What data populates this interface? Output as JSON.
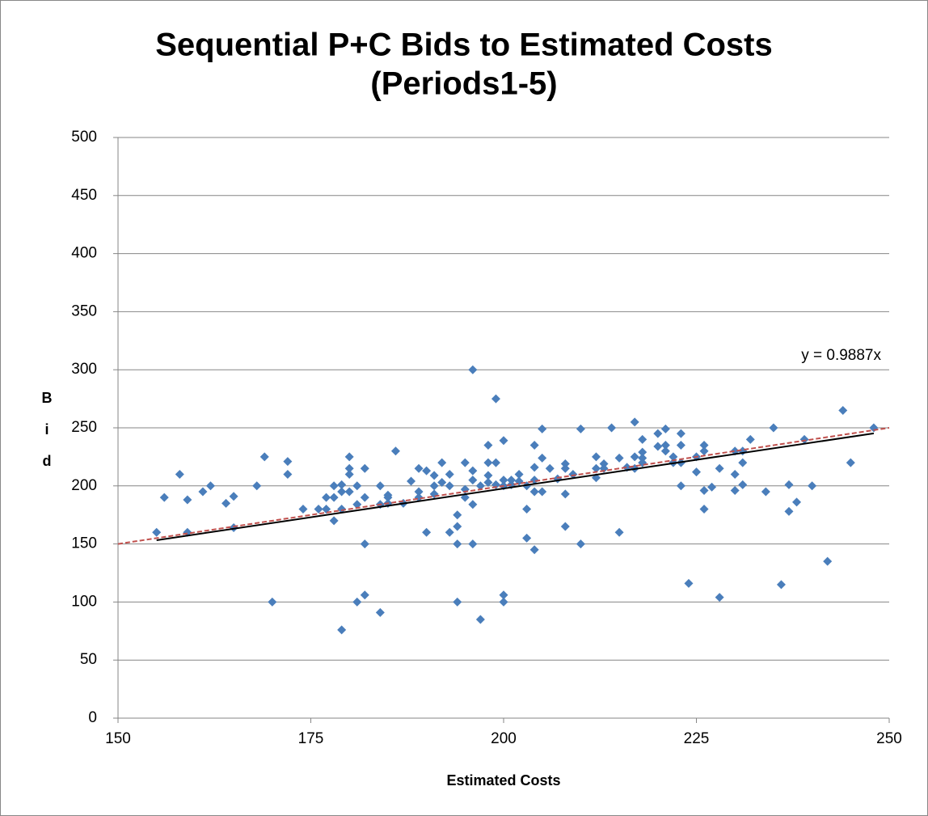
{
  "chart_data": {
    "type": "scatter",
    "title": "Sequential P+C Bids to Estimated Costs",
    "subtitle": "(Periods1-5)",
    "x_label": "Estimated Costs",
    "y_label": "Bid",
    "annotation": "y = 0.9887x",
    "xlim": [
      150,
      250
    ],
    "xticks": [
      150,
      175,
      200,
      225,
      250
    ],
    "ylim": [
      0,
      500
    ],
    "yticks": [
      0,
      50,
      100,
      150,
      200,
      250,
      300,
      350,
      400,
      450,
      500
    ],
    "grid": true,
    "series": [
      {
        "color": "#4a7ebb",
        "x": [
          155,
          156,
          158,
          159,
          159,
          161,
          162,
          164,
          165,
          165,
          168,
          169,
          170,
          172,
          172,
          174,
          176,
          177,
          177,
          178,
          178,
          178,
          179,
          179,
          179,
          179,
          180,
          180,
          180,
          180,
          181,
          181,
          181,
          182,
          182,
          182,
          182,
          184,
          184,
          184,
          185,
          185,
          185,
          186,
          187,
          188,
          189,
          189,
          189,
          190,
          190,
          191,
          191,
          191,
          192,
          192,
          193,
          193,
          193,
          194,
          194,
          194,
          194,
          195,
          195,
          195,
          196,
          196,
          196,
          196,
          196,
          197,
          197,
          198,
          198,
          198,
          198,
          199,
          199,
          199,
          200,
          200,
          200,
          200,
          200,
          201,
          201,
          202,
          202,
          203,
          203,
          203,
          204,
          204,
          204,
          204,
          204,
          205,
          205,
          205,
          206,
          207,
          208,
          208,
          208,
          208,
          209,
          210,
          210,
          212,
          212,
          212,
          213,
          213,
          214,
          215,
          215,
          216,
          217,
          217,
          217,
          218,
          218,
          218,
          218,
          220,
          220,
          221,
          221,
          221,
          222,
          222,
          223,
          223,
          223,
          223,
          224,
          225,
          225,
          226,
          226,
          226,
          226,
          227,
          228,
          228,
          230,
          230,
          230,
          231,
          231,
          231,
          232,
          234,
          235,
          236,
          237,
          237,
          238,
          239,
          240,
          242,
          244,
          245,
          248
        ],
        "values": [
          160,
          190,
          210,
          188,
          160,
          195,
          200,
          185,
          191,
          164,
          200,
          225,
          100,
          221,
          210,
          180,
          180,
          190,
          180,
          200,
          190,
          170,
          201,
          180,
          195,
          76,
          225,
          215,
          210,
          195,
          200,
          184,
          100,
          215,
          190,
          150,
          106,
          200,
          184,
          91,
          192,
          190,
          185,
          230,
          185,
          204,
          215,
          195,
          190,
          213,
          160,
          209,
          200,
          193,
          220,
          203,
          210,
          200,
          160,
          175,
          165,
          150,
          100,
          220,
          197,
          190,
          300,
          213,
          205,
          184,
          150,
          200,
          85,
          235,
          220,
          209,
          203,
          275,
          220,
          201,
          239,
          205,
          200,
          106,
          100,
          205,
          201,
          210,
          204,
          200,
          180,
          155,
          235,
          216,
          205,
          195,
          145,
          249,
          224,
          195,
          215,
          206,
          219,
          215,
          193,
          165,
          210,
          249,
          150,
          225,
          215,
          207,
          219,
          215,
          250,
          224,
          160,
          216,
          255,
          225,
          215,
          240,
          229,
          224,
          220,
          245,
          234,
          249,
          235,
          230,
          225,
          220,
          245,
          235,
          220,
          200,
          116,
          225,
          212,
          235,
          230,
          196,
          180,
          199,
          215,
          104,
          230,
          210,
          196,
          230,
          220,
          201,
          240,
          195,
          250,
          115,
          201,
          178,
          186,
          240,
          200,
          135,
          265,
          220,
          250
        ]
      }
    ],
    "trendlines": [
      {
        "color": "#000000",
        "dash": false,
        "x": [
          155,
          248
        ],
        "values": [
          153.2,
          245.2
        ]
      },
      {
        "color": "#c0504d",
        "dash": true,
        "x": [
          150,
          250
        ],
        "values": [
          150,
          250
        ]
      }
    ]
  }
}
